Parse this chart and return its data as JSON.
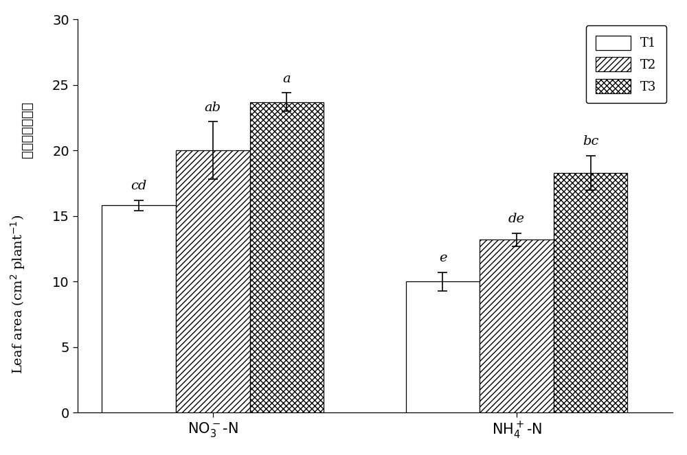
{
  "groups": [
    "$\\mathrm{NO_3^-}$-N",
    "$\\mathrm{NH_4^+}$-N"
  ],
  "group_centers": [
    0.38,
    1.12
  ],
  "treatments": [
    "T1",
    "T2",
    "T3"
  ],
  "values": [
    [
      15.8,
      20.0,
      23.7
    ],
    [
      10.0,
      13.2,
      18.3
    ]
  ],
  "errors": [
    [
      0.4,
      2.2,
      0.7
    ],
    [
      0.7,
      0.5,
      1.3
    ]
  ],
  "labels": [
    [
      "cd",
      "ab",
      "a"
    ],
    [
      "e",
      "de",
      "bc"
    ]
  ],
  "ylim": [
    0,
    30
  ],
  "yticks": [
    0,
    5,
    10,
    15,
    20,
    25,
    30
  ],
  "ylabel_chinese": "叶面积（每株）",
  "ylabel_english": "Leaf area (cm$^2$ plant$^{-1}$)",
  "bar_width": 0.18,
  "hatch_patterns": [
    "",
    "////",
    "xxxx"
  ],
  "face_color": "#ffffff",
  "edge_color": "#000000",
  "font_size_ticks": 14,
  "font_size_ylabel": 14,
  "font_size_legend": 13,
  "font_size_annotation": 14,
  "font_size_xtick": 15
}
